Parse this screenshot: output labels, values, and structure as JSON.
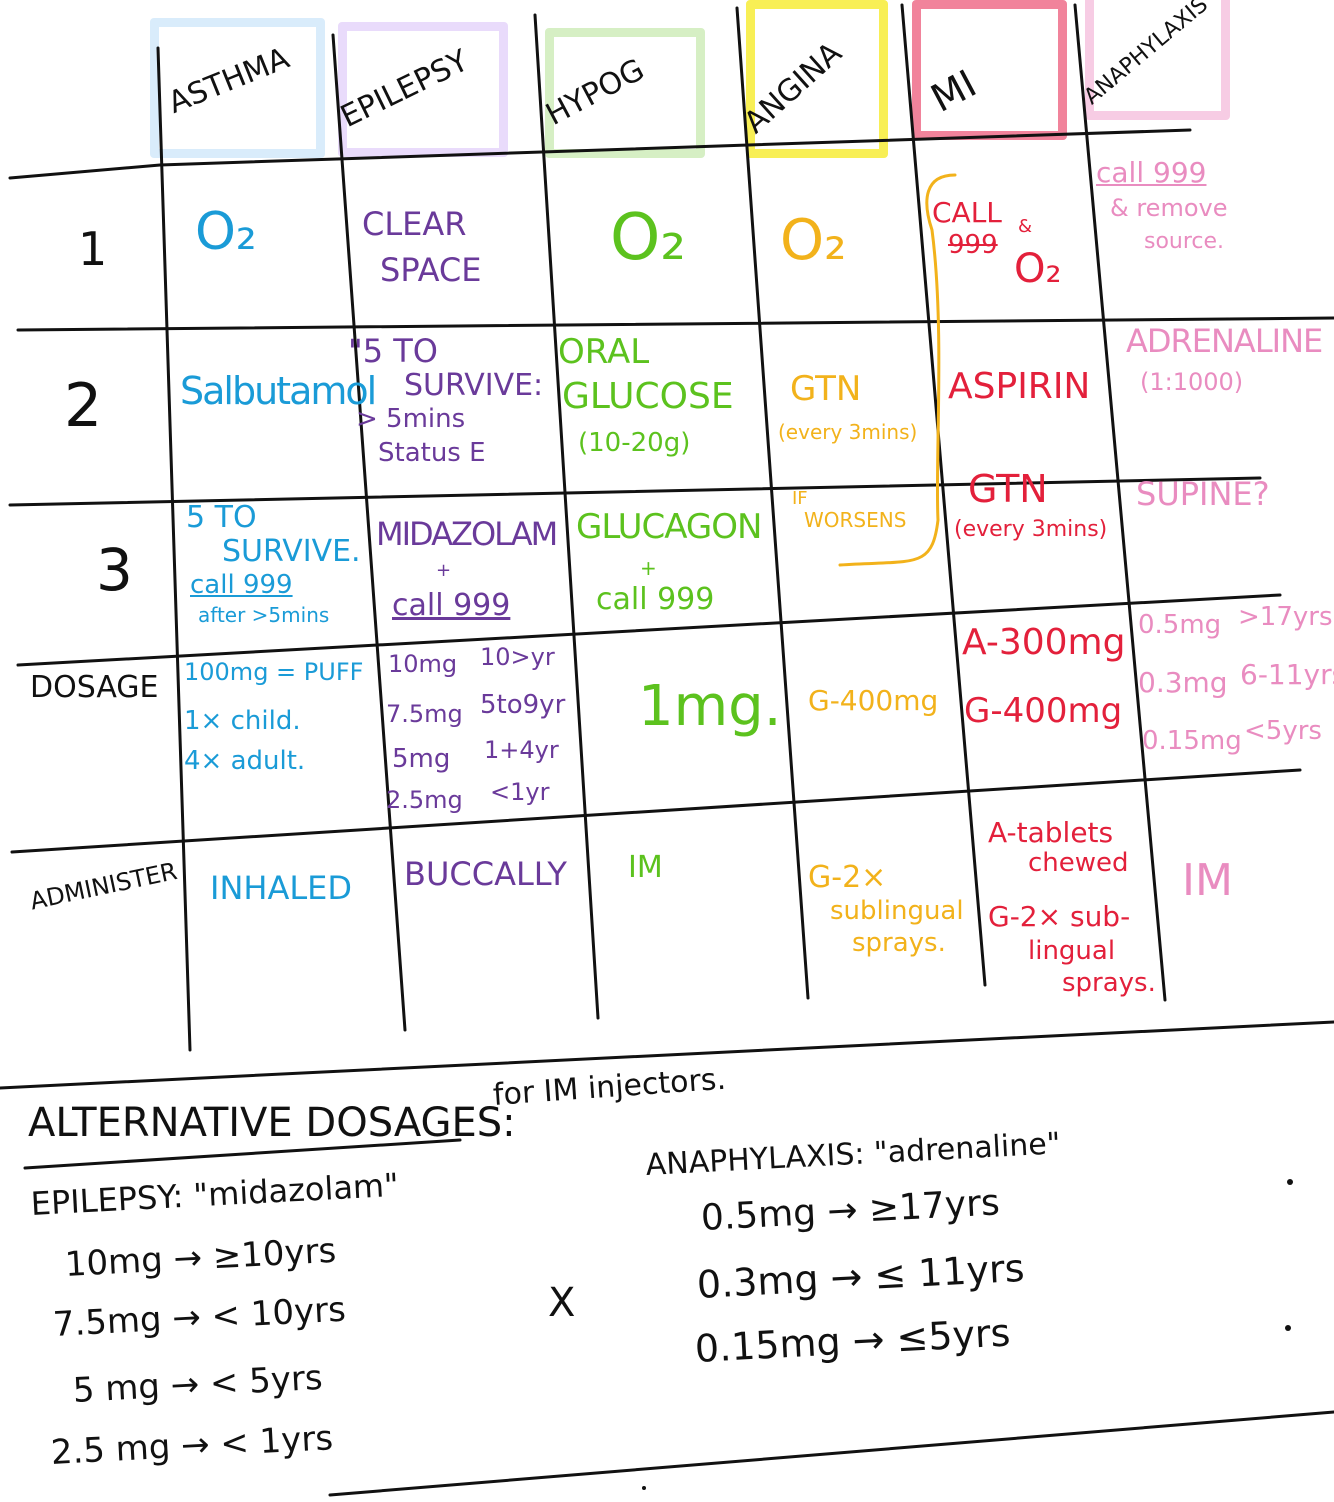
{
  "colors": {
    "asthma": "#1a9bd7",
    "epilepsy": "#6a3a9a",
    "hypo": "#5cc21e",
    "angina": "#f2b21b",
    "mi": "#e3203b",
    "anaphylaxis": "#e98cc0",
    "asthma_hl": "#d9ecfb",
    "epilepsy_hl": "#e9dbfb",
    "hypo_hl": "#d6efc4",
    "angina_hl": "#f8ef55",
    "mi_hl": "#f1839b",
    "anaphylaxis_hl": "#f7cce4",
    "ink": "#111111"
  },
  "headers": {
    "asthma": "ASTHMA",
    "epilepsy": "EPILEPSY",
    "hypog": "HYPOG",
    "angina": "ANGINA",
    "mi": "MI",
    "anaphylaxis": "ANAPHYLAXIS"
  },
  "rows": {
    "r1": "1",
    "r2": "2",
    "r3": "3",
    "dosage": "DOSAGE",
    "administer": "ADMINISTER"
  },
  "asthma": {
    "s1": "O₂",
    "s2": "Salbutamol",
    "s3_a": "5 TO",
    "s3_b": "SURVIVE.",
    "s3_c": "call 999",
    "s3_d": "after >5mins",
    "dose_a": "100mg = PUFF",
    "dose_b": "1× child.",
    "dose_c": "4× adult.",
    "admin": "INHALED"
  },
  "epilepsy": {
    "s1_a": "CLEAR",
    "s1_b": "SPACE",
    "s2_a": "\"5 TO",
    "s2_b": "SURVIVE:",
    "s2_c": "> 5mins",
    "s2_d": "Status E",
    "s3_a": "MIDAZOLAM",
    "s3_b": "+",
    "s3_c": "call 999",
    "dose_1a": "10mg",
    "dose_1b": "10>yr",
    "dose_2a": "7.5mg",
    "dose_2b": "5to9yr",
    "dose_3a": "5mg",
    "dose_3b": "1+4yr",
    "dose_4a": "2.5mg",
    "dose_4b": "<1yr",
    "admin": "BUCCALLY"
  },
  "hypo": {
    "s1": "O₂",
    "s2_a": "ORAL",
    "s2_b": "GLUCOSE",
    "s2_c": "(10-20g)",
    "s3_a": "GLUCAGON",
    "s3_b": "+",
    "s3_c": "call 999",
    "dose": "1mg.",
    "admin": "IM"
  },
  "angina": {
    "s1": "O₂",
    "s2_a": "GTN",
    "s2_b": "(every 3mins)",
    "s3_a": "IF",
    "s3_b": "WORSENS",
    "dose": "G-400mg",
    "admin_a": "G-2×",
    "admin_b": "sublingual",
    "admin_c": "sprays."
  },
  "mi": {
    "s1_a": "CALL",
    "s1_b": "999",
    "s1_c": "&",
    "s1_d": "O₂",
    "s2": "ASPIRIN",
    "s3_a": "GTN",
    "s3_b": "(every 3mins)",
    "dose_a": "A-300mg",
    "dose_b": "G-400mg",
    "admin_a": "A-tablets",
    "admin_b": "chewed",
    "admin_c": "G-2× sub-",
    "admin_d": "lingual",
    "admin_e": "sprays."
  },
  "anaphylaxis": {
    "s1_a": "call 999",
    "s1_b": "& remove",
    "s1_c": "source.",
    "s2_a": "ADRENALINE",
    "s2_b": "(1:1000)",
    "s3": "SUPINE?",
    "dose_1a": "0.5mg",
    "dose_1b": ">17yrs",
    "dose_2a": "0.3mg",
    "dose_2b": "6-11yrs",
    "dose_3a": "0.15mg",
    "dose_3b": "<5yrs",
    "admin": "IM"
  },
  "alt": {
    "title": "ALTERNATIVE DOSAGES:",
    "subtitle": "for IM injectors.",
    "epi_title": "EPILEPSY: \"midazolam\"",
    "epi_1": "10mg → ≥10yrs",
    "epi_2": "7.5mg → < 10yrs",
    "epi_3": "5 mg → < 5yrs",
    "epi_4": "2.5 mg → < 1yrs",
    "x": "X",
    "ana_title": "ANAPHYLAXIS: \"adrenaline\"",
    "ana_1": "0.5mg → ≥17yrs",
    "ana_2": "0.3mg → ≤ 11yrs",
    "ana_3": "0.15mg → ≤5yrs"
  }
}
